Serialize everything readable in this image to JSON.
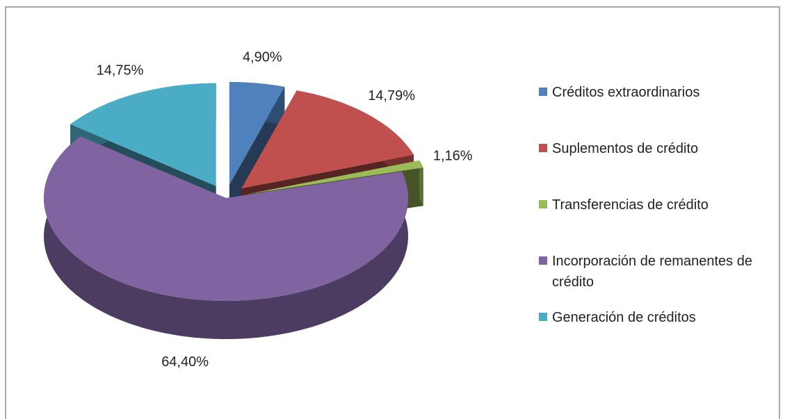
{
  "chart_data": {
    "type": "pie",
    "categories": [
      "Créditos extraordinarios",
      "Suplementos de crédito",
      "Transferencias de crédito",
      "Incorporación de remanentes de crédito",
      "Generación de créditos"
    ],
    "values": [
      4.9,
      14.79,
      1.16,
      64.4,
      14.75
    ],
    "value_labels": [
      "4,90%",
      "14,79%",
      "1,16%",
      "64,40%",
      "14,75%"
    ],
    "colors": [
      "#4f81bd",
      "#c0504d",
      "#9bbb59",
      "#8064a2",
      "#4bacc6"
    ],
    "exploded": [
      true,
      true,
      true,
      false,
      true
    ],
    "legend": "right"
  }
}
